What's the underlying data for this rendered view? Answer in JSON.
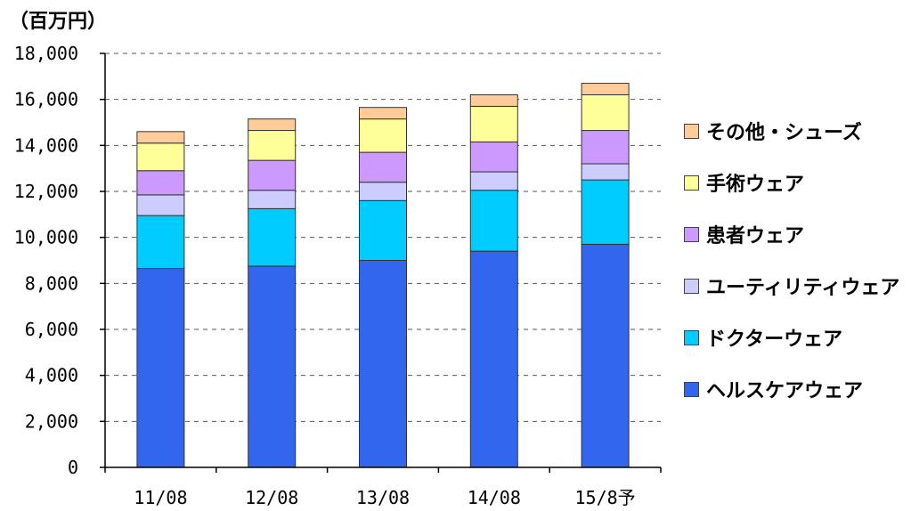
{
  "chart_data": {
    "type": "bar",
    "stacked": true,
    "unit_label": "（百万円）",
    "categories": [
      "11/08",
      "12/08",
      "13/08",
      "14/08",
      "15/8予"
    ],
    "ylim": [
      0,
      18000
    ],
    "yticks": [
      0,
      2000,
      4000,
      6000,
      8000,
      10000,
      12000,
      14000,
      16000,
      18000
    ],
    "ytick_labels": [
      "0",
      "2,000",
      "4,000",
      "6,000",
      "8,000",
      "10,000",
      "12,000",
      "14,000",
      "16,000",
      "18,000"
    ],
    "grid": "horizontal dashed",
    "legend_position": "right",
    "series": [
      {
        "name": "ヘルスケアウェア",
        "color": "#3366ee",
        "values": [
          8650,
          8750,
          9000,
          9400,
          9700
        ]
      },
      {
        "name": "ドクターウェア",
        "color": "#00ccff",
        "values": [
          2300,
          2500,
          2600,
          2650,
          2800
        ]
      },
      {
        "name": "ユーティリティウェア",
        "color": "#ccccff",
        "values": [
          900,
          800,
          800,
          800,
          700
        ]
      },
      {
        "name": "患者ウェア",
        "color": "#cc99ff",
        "values": [
          1050,
          1300,
          1300,
          1300,
          1450
        ]
      },
      {
        "name": "手術ウェア",
        "color": "#ffff99",
        "values": [
          1200,
          1300,
          1450,
          1550,
          1550
        ]
      },
      {
        "name": "その他・シューズ",
        "color": "#ffcc99",
        "values": [
          500,
          500,
          500,
          500,
          500
        ]
      }
    ]
  }
}
